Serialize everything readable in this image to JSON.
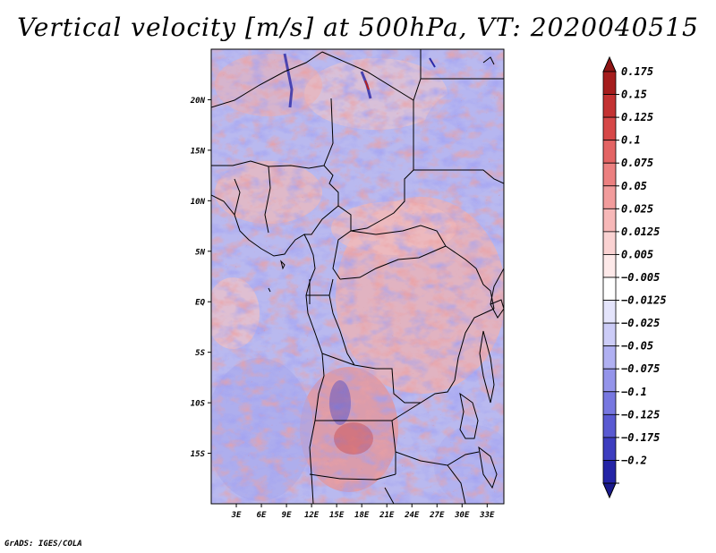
{
  "title": "Vertical velocity [m/s] at 500hPa, VT: 2020040515",
  "credit": "GrADS: IGES/COLA",
  "map": {
    "lon_range": [
      0,
      35
    ],
    "lat_range": [
      -20,
      25
    ],
    "lat_ticks": [
      {
        "label": "20N",
        "lat": 20
      },
      {
        "label": "15N",
        "lat": 15
      },
      {
        "label": "10N",
        "lat": 10
      },
      {
        "label": "5N",
        "lat": 5
      },
      {
        "label": "EQ",
        "lat": 0
      },
      {
        "label": "5S",
        "lat": -5
      },
      {
        "label": "10S",
        "lat": -10
      },
      {
        "label": "15S",
        "lat": -15
      }
    ],
    "lon_ticks": [
      {
        "label": "3E",
        "lon": 3
      },
      {
        "label": "6E",
        "lon": 6
      },
      {
        "label": "9E",
        "lon": 9
      },
      {
        "label": "12E",
        "lon": 12
      },
      {
        "label": "15E",
        "lon": 15
      },
      {
        "label": "18E",
        "lon": 18
      },
      {
        "label": "21E",
        "lon": 21
      },
      {
        "label": "24E",
        "lon": 24
      },
      {
        "label": "27E",
        "lon": 27
      },
      {
        "label": "30E",
        "lon": 30
      },
      {
        "label": "33E",
        "lon": 33
      }
    ]
  },
  "colorbar": {
    "entries": [
      {
        "label": "0.175",
        "color": "#a51d1d"
      },
      {
        "label": "0.15",
        "color": "#c33232"
      },
      {
        "label": "0.125",
        "color": "#d64848"
      },
      {
        "label": "0.1",
        "color": "#e36464"
      },
      {
        "label": "0.075",
        "color": "#ec8080"
      },
      {
        "label": "0.05",
        "color": "#f29c9c"
      },
      {
        "label": "0.025",
        "color": "#f7b8b8"
      },
      {
        "label": "0.0125",
        "color": "#fad2d2"
      },
      {
        "label": "0.005",
        "color": "#fde9e9"
      },
      {
        "label": "-0.005",
        "color": "#ffffff"
      },
      {
        "label": "-0.0125",
        "color": "#e4e4fb"
      },
      {
        "label": "-0.025",
        "color": "#ccccf7"
      },
      {
        "label": "-0.05",
        "color": "#b0b0f2"
      },
      {
        "label": "-0.075",
        "color": "#9494ea"
      },
      {
        "label": "-0.1",
        "color": "#7777e0"
      },
      {
        "label": "-0.125",
        "color": "#5a5ad2"
      },
      {
        "label": "-0.175",
        "color": "#3d3dbf"
      },
      {
        "label": "-0.2",
        "color": "#2424a6"
      }
    ],
    "max_color": "#8f1515",
    "min_color": "#1a1a8c"
  }
}
